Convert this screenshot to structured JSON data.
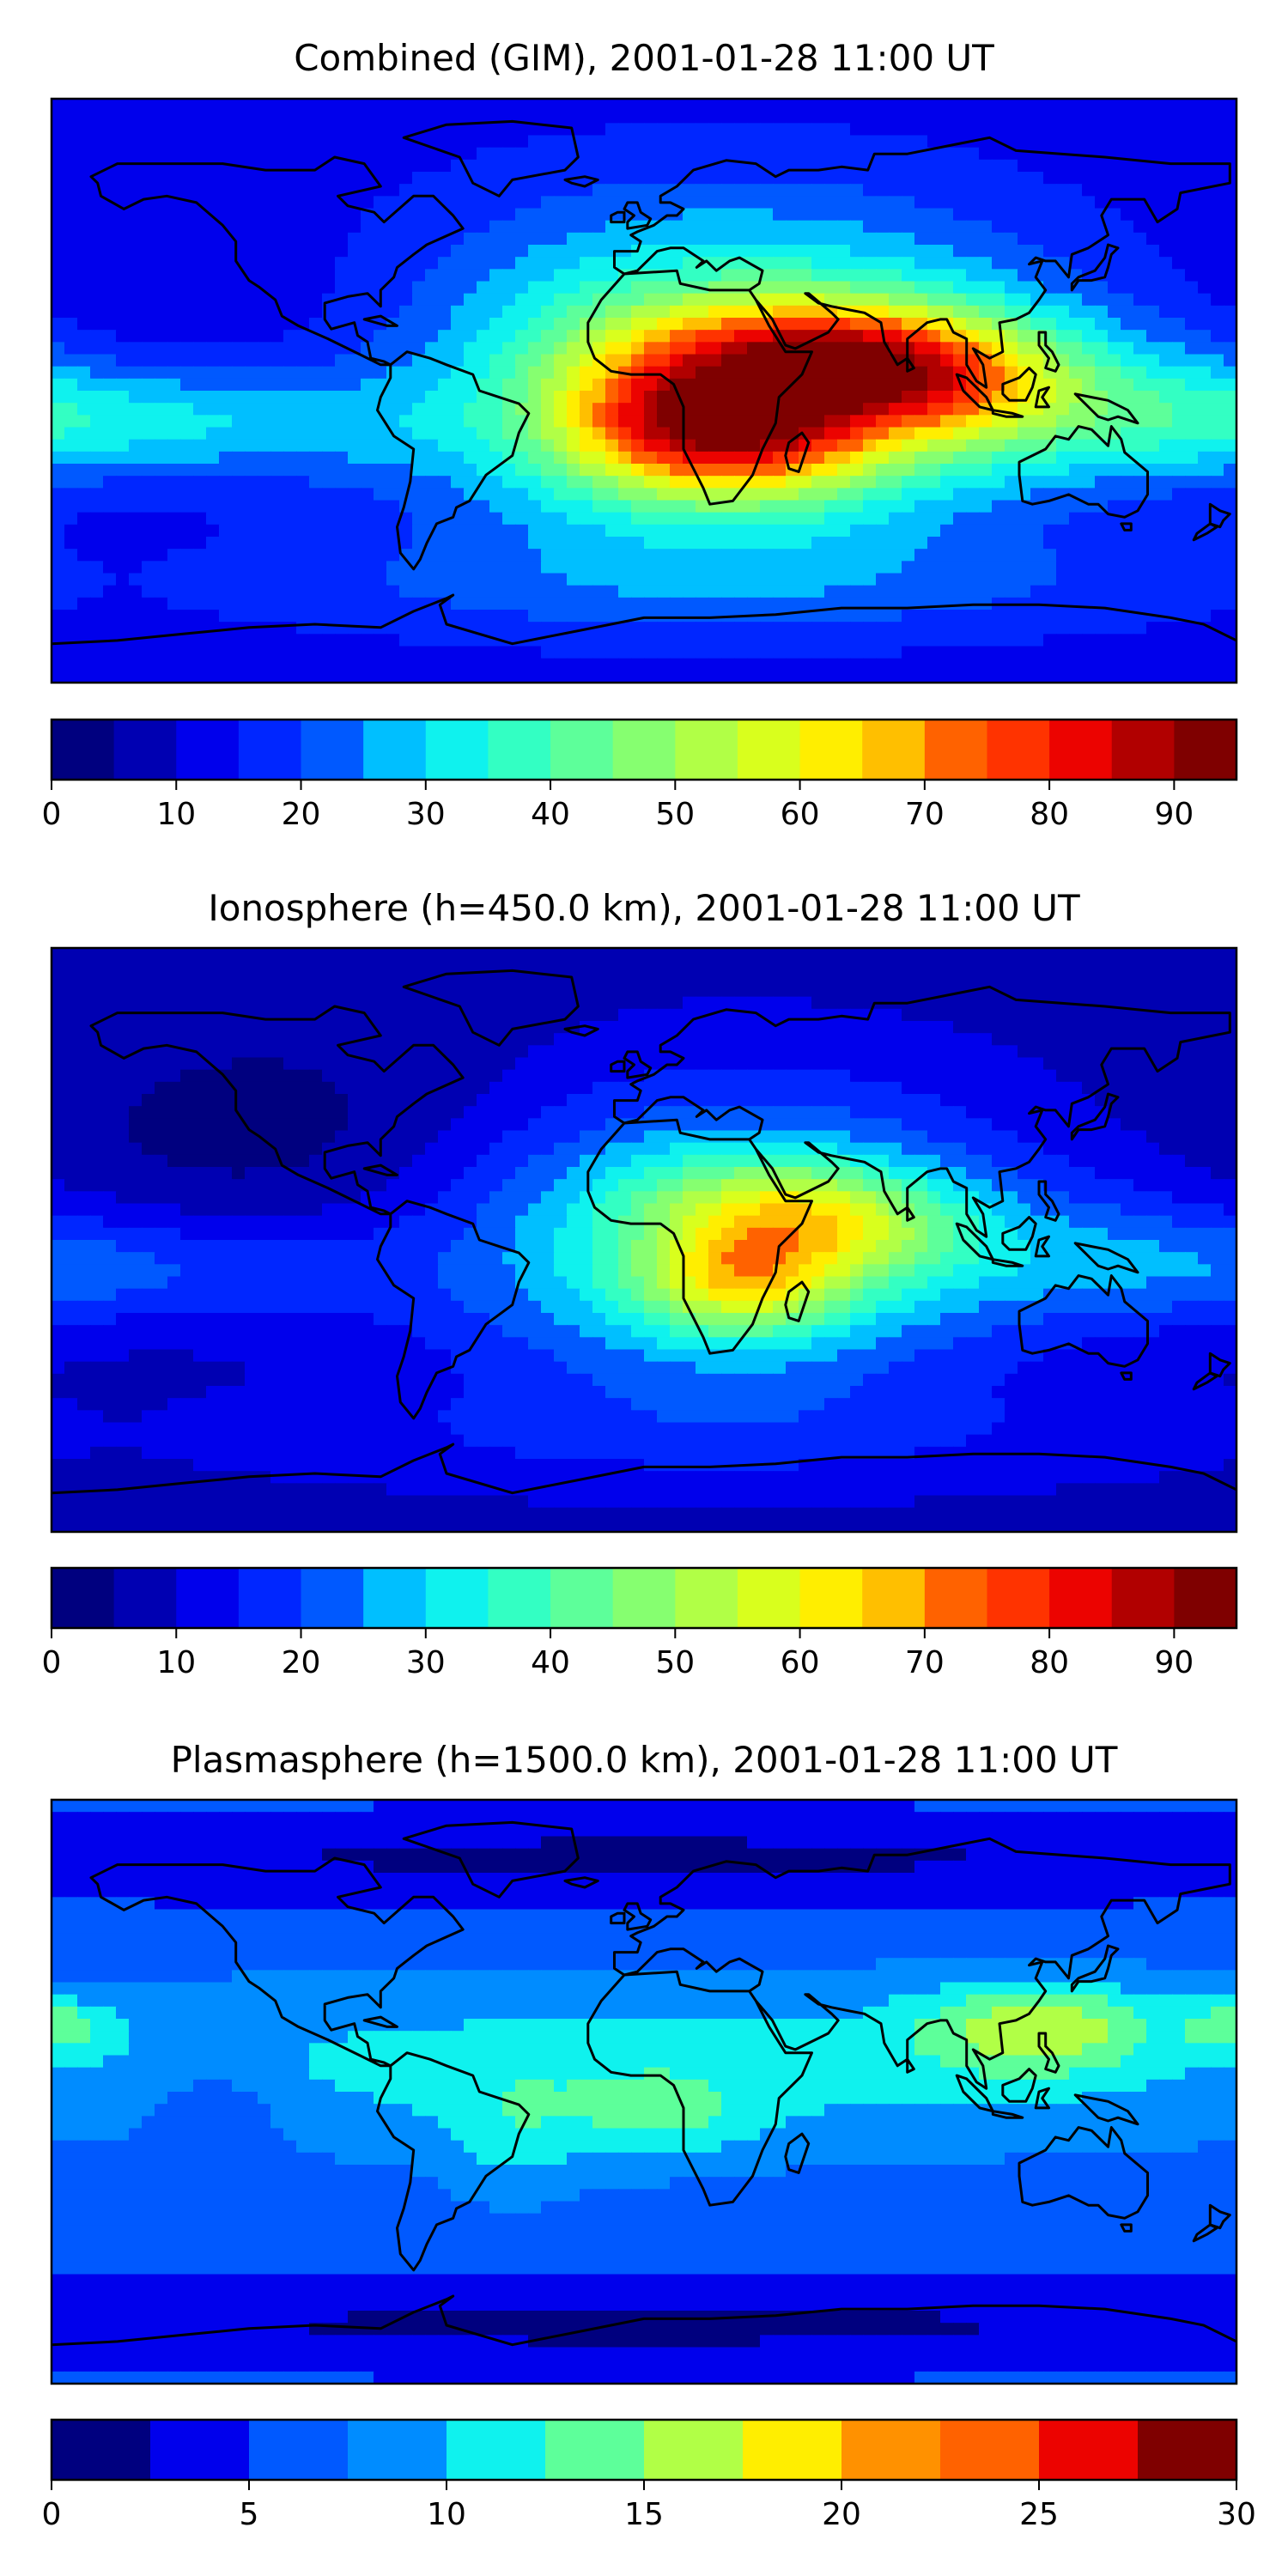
{
  "colors": {
    "jet": [
      "#00007f",
      "#0000b2",
      "#0000ec",
      "#0026ff",
      "#0059ff",
      "#008cff",
      "#00bfff",
      "#0ff2ee",
      "#33ffc3",
      "#5dff9a",
      "#86ff70",
      "#b1ff46",
      "#d9ff1d",
      "#ffee00",
      "#ffbf00",
      "#ff9100",
      "#ff6200",
      "#ff3300",
      "#ec0300",
      "#b10000",
      "#7f0000"
    ]
  },
  "panels": [
    {
      "id": "combined",
      "title": "Combined (GIM), 2001-01-28 11:00 UT",
      "colorbar": {
        "min": 0,
        "max": 95,
        "levels": 19,
        "ticks": [
          0,
          10,
          20,
          30,
          40,
          50,
          60,
          70,
          80,
          90
        ],
        "tick_labels": [
          "0",
          "10",
          "20",
          "30",
          "40",
          "50",
          "60",
          "70",
          "80",
          "90"
        ]
      },
      "field": {
        "background": 12,
        "features": [
          {
            "lon": 25,
            "lat": 5,
            "slon": 70,
            "slat": 35,
            "amp": 36
          },
          {
            "lon": 30,
            "lat": -12,
            "slon": 30,
            "slat": 15,
            "amp": 46
          },
          {
            "lon": 55,
            "lat": 14,
            "slon": 40,
            "slat": 11,
            "amp": 32
          },
          {
            "lon": 88,
            "lat": 2,
            "slon": 28,
            "slat": 12,
            "amp": 26
          },
          {
            "lon": -5,
            "lat": -8,
            "slon": 22,
            "slat": 16,
            "amp": 14
          },
          {
            "lon": 140,
            "lat": -5,
            "slon": 55,
            "slat": 15,
            "amp": 14
          },
          {
            "lon": -150,
            "lat": -10,
            "slon": 60,
            "slat": 12,
            "amp": 14
          },
          {
            "lon": 20,
            "lat": -60,
            "slon": 120,
            "slat": 12,
            "amp": 8
          },
          {
            "lon": -100,
            "lat": 20,
            "slon": 60,
            "slat": 20,
            "amp": -4
          }
        ]
      }
    },
    {
      "id": "ionosphere",
      "title": "Ionosphere  (h=450.0 km), 2001-01-28 11:00 UT",
      "colorbar": {
        "min": 0,
        "max": 95,
        "levels": 19,
        "ticks": [
          0,
          10,
          20,
          30,
          40,
          50,
          60,
          70,
          80,
          90
        ],
        "tick_labels": [
          "0",
          "10",
          "20",
          "30",
          "40",
          "50",
          "60",
          "70",
          "80",
          "90"
        ]
      },
      "field": {
        "background": 8,
        "features": [
          {
            "lon": 25,
            "lat": 0,
            "slon": 62,
            "slat": 32,
            "amp": 30
          },
          {
            "lon": 30,
            "lat": -12,
            "slon": 22,
            "slat": 12,
            "amp": 30
          },
          {
            "lon": 40,
            "lat": 12,
            "slon": 30,
            "slat": 10,
            "amp": 18
          },
          {
            "lon": 65,
            "lat": 2,
            "slon": 25,
            "slat": 10,
            "amp": 14
          },
          {
            "lon": 140,
            "lat": -5,
            "slon": 50,
            "slat": 15,
            "amp": 10
          },
          {
            "lon": -150,
            "lat": -10,
            "slon": 55,
            "slat": 12,
            "amp": 10
          },
          {
            "lon": 20,
            "lat": -60,
            "slon": 120,
            "slat": 12,
            "amp": 6
          },
          {
            "lon": -100,
            "lat": 30,
            "slon": 55,
            "slat": 25,
            "amp": -6
          }
        ]
      }
    },
    {
      "id": "plasmasphere",
      "title": "Plasmasphere (h=1500.0 km), 2001-01-28 11:00 UT",
      "colorbar": {
        "min": 0,
        "max": 30,
        "levels": 12,
        "ticks": [
          0,
          5,
          10,
          15,
          20,
          25,
          30
        ],
        "tick_labels": [
          "0",
          "5",
          "10",
          "15",
          "20",
          "25",
          "30"
        ]
      },
      "field": {
        "background": 6,
        "features": [
          {
            "lon": 0,
            "lat": 8,
            "slon": 180,
            "slat": 20,
            "amp": 5
          },
          {
            "lon": 120,
            "lat": 20,
            "slon": 25,
            "slat": 10,
            "amp": 8
          },
          {
            "lon": -178,
            "lat": 20,
            "slon": 12,
            "slat": 6,
            "amp": 6
          },
          {
            "lon": -40,
            "lat": -15,
            "slon": 15,
            "slat": 15,
            "amp": 3
          },
          {
            "lon": 5,
            "lat": -8,
            "slon": 20,
            "slat": 10,
            "amp": 4
          },
          {
            "lon": -130,
            "lat": -5,
            "slon": 15,
            "slat": 10,
            "amp": -3
          },
          {
            "lon": 0,
            "lat": 72,
            "slon": 200,
            "slat": 10,
            "amp": -4
          },
          {
            "lon": 0,
            "lat": -72,
            "slon": 200,
            "slat": 10,
            "amp": -4
          }
        ]
      }
    }
  ]
}
